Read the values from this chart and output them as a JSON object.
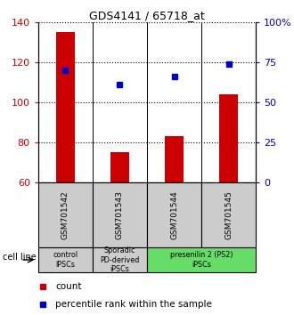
{
  "title": "GDS4141 / 65718_at",
  "samples": [
    "GSM701542",
    "GSM701543",
    "GSM701544",
    "GSM701545"
  ],
  "bar_values": [
    135,
    75,
    83,
    104
  ],
  "bar_color": "#cc0000",
  "dot_values": [
    116,
    109,
    113,
    119
  ],
  "dot_color": "#0000cc",
  "ylim_left": [
    60,
    140
  ],
  "ylim_right": [
    0,
    100
  ],
  "yticks_left": [
    60,
    80,
    100,
    120,
    140
  ],
  "yticks_right": [
    0,
    25,
    50,
    75,
    100
  ],
  "ytick_labels_right": [
    "0",
    "25",
    "50",
    "75",
    "100%"
  ],
  "groups": [
    {
      "label": "control\nIPSCs",
      "span": [
        0,
        1
      ],
      "color": "#cccccc"
    },
    {
      "label": "Sporadic\nPD-derived\niPSCs",
      "span": [
        1,
        2
      ],
      "color": "#cccccc"
    },
    {
      "label": "presenilin 2 (PS2)\niPSCs",
      "span": [
        2,
        4
      ],
      "color": "#66dd66"
    }
  ],
  "cell_line_label": "cell line",
  "legend_count_label": "count",
  "legend_pct_label": "percentile rank within the sample",
  "bar_bottom": 60,
  "sample_box_color": "#cccccc",
  "bar_width": 0.35
}
